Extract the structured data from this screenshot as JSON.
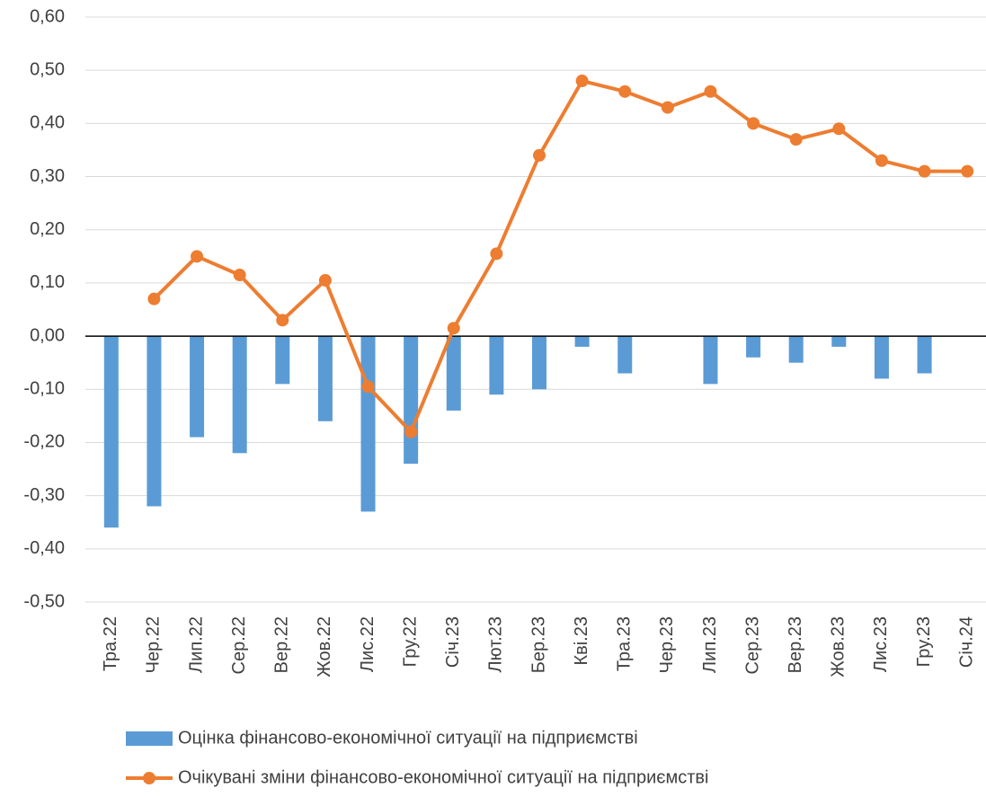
{
  "chart_data": {
    "type": "bar_line",
    "categories": [
      "Тра.22",
      "Чер.22",
      "Лип.22",
      "Сер.22",
      "Вер.22",
      "Жов.22",
      "Лис.22",
      "Гру.22",
      "Січ.23",
      "Лют.23",
      "Бер.23",
      "Кві.23",
      "Тра.23",
      "Чер.23",
      "Лип.23",
      "Сер.23",
      "Вер.23",
      "Жов.23",
      "Лис.23",
      "Гру.23",
      "Січ.24"
    ],
    "series": [
      {
        "name": "Оцінка фінансово-економічної ситуації на підприємстві",
        "type": "bar",
        "color": "#5b9bd5",
        "values": [
          -0.36,
          -0.32,
          -0.19,
          -0.22,
          -0.09,
          -0.16,
          -0.33,
          -0.24,
          -0.14,
          -0.11,
          -0.1,
          -0.02,
          -0.07,
          0,
          -0.09,
          -0.04,
          -0.05,
          -0.02,
          -0.08,
          -0.07,
          0
        ]
      },
      {
        "name": "Очікувані зміни фінансово-економічної ситуації на підприємстві",
        "type": "line",
        "color": "#ed7d31",
        "values": [
          null,
          0.07,
          0.15,
          0.115,
          0.03,
          0.105,
          -0.095,
          -0.18,
          0.015,
          0.155,
          0.34,
          0.48,
          0.46,
          0.43,
          0.46,
          0.4,
          0.37,
          0.39,
          0.33,
          0.31,
          0.31
        ]
      }
    ],
    "ylim": [
      -0.5,
      0.6
    ],
    "yticks": [
      {
        "value": -0.5,
        "label": "-0,50"
      },
      {
        "value": -0.4,
        "label": "-0,40"
      },
      {
        "value": -0.3,
        "label": "-0,30"
      },
      {
        "value": -0.2,
        "label": "-0,20"
      },
      {
        "value": -0.1,
        "label": "-0,10"
      },
      {
        "value": 0,
        "label": "0,00"
      },
      {
        "value": 0.1,
        "label": "0,10"
      },
      {
        "value": 0.2,
        "label": "0,20"
      },
      {
        "value": 0.3,
        "label": "0,30"
      },
      {
        "value": 0.4,
        "label": "0,40"
      },
      {
        "value": 0.5,
        "label": "0,50"
      },
      {
        "value": 0.6,
        "label": "0,60"
      }
    ],
    "grid": true
  }
}
